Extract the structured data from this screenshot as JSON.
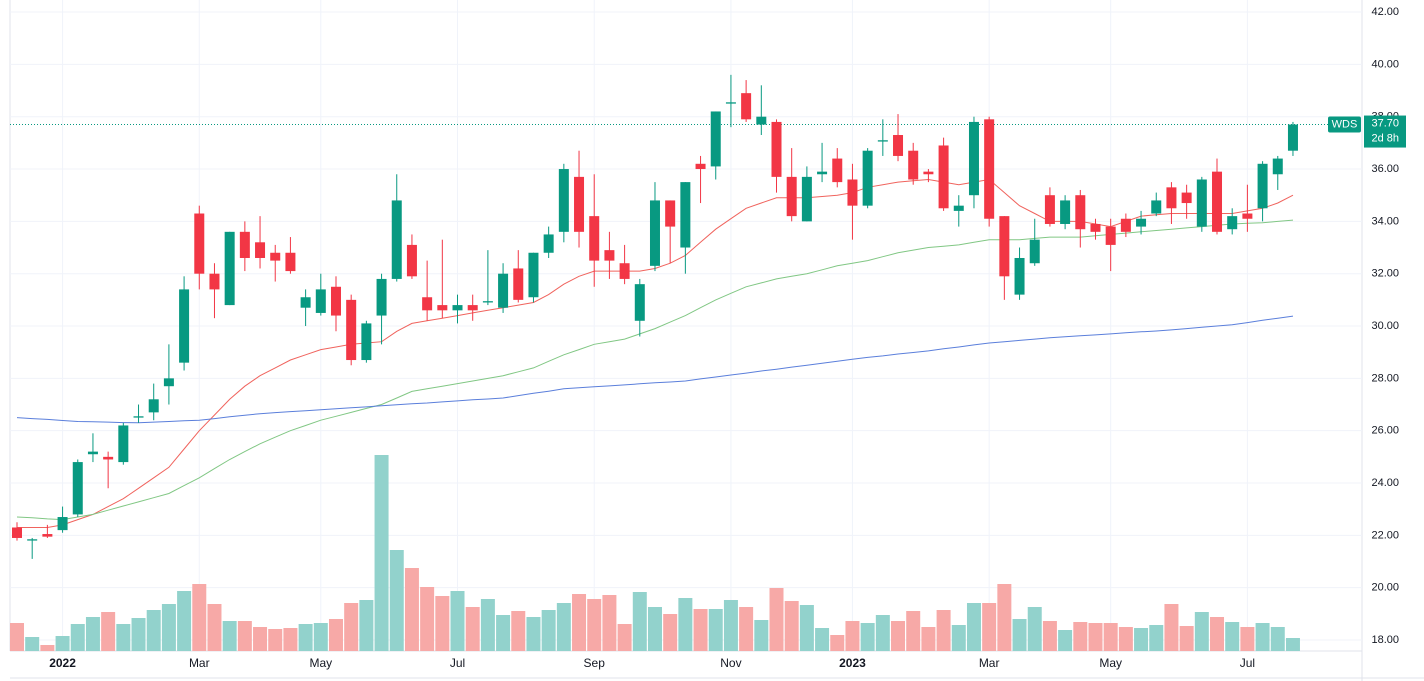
{
  "chart_data": {
    "type": "candlestick",
    "symbol": "WDS",
    "last_price": {
      "value": 37.7,
      "label": "37.70"
    },
    "countdown": "2d 8h",
    "up_color": "#089981",
    "down_color": "#f23645",
    "volume_up_color": "#92d2cc",
    "volume_down_color": "#f7a9a7",
    "grid": true,
    "categories": [
      null,
      null,
      null,
      "2022",
      null,
      null,
      null,
      null,
      null,
      null,
      null,
      null,
      "Mar",
      null,
      null,
      null,
      null,
      null,
      null,
      null,
      "May",
      null,
      null,
      null,
      null,
      null,
      null,
      null,
      null,
      "Jul",
      null,
      null,
      null,
      null,
      null,
      null,
      null,
      null,
      "Sep",
      null,
      null,
      null,
      null,
      null,
      null,
      null,
      null,
      "Nov",
      null,
      null,
      null,
      null,
      null,
      null,
      null,
      "2023",
      null,
      null,
      null,
      null,
      null,
      null,
      null,
      null,
      "Mar",
      null,
      null,
      null,
      null,
      null,
      null,
      null,
      "May",
      null,
      null,
      null,
      null,
      null,
      null,
      null,
      null,
      "Jul",
      null,
      null,
      null
    ],
    "open": [
      22.3,
      21.8,
      22.05,
      22.2,
      22.8,
      25.1,
      25.0,
      24.8,
      26.5,
      26.7,
      27.7,
      28.6,
      34.3,
      32.0,
      30.8,
      33.6,
      33.2,
      32.8,
      32.8,
      30.7,
      30.5,
      31.5,
      31.0,
      28.7,
      30.4,
      31.8,
      33.1,
      31.1,
      30.8,
      30.6,
      30.8,
      30.9,
      30.7,
      32.2,
      31.1,
      32.8,
      33.6,
      35.7,
      34.2,
      32.9,
      32.4,
      30.2,
      32.3,
      34.8,
      33.0,
      36.2,
      36.1,
      38.5,
      38.9,
      37.7,
      37.8,
      35.7,
      34.0,
      35.8,
      36.4,
      35.6,
      34.6,
      37.05,
      37.3,
      36.7,
      35.9,
      36.9,
      34.4,
      35.0,
      37.9,
      34.2,
      31.2,
      32.4,
      35.0,
      33.9,
      35.0,
      33.9,
      33.8,
      34.1,
      33.8,
      34.3,
      35.3,
      35.1,
      33.8,
      35.9,
      33.7,
      34.3,
      34.5,
      35.8,
      36.7
    ],
    "high": [
      22.5,
      21.9,
      22.4,
      23.1,
      24.9,
      25.9,
      25.2,
      26.3,
      27.0,
      27.8,
      29.3,
      31.9,
      34.6,
      32.4,
      33.6,
      34.0,
      34.2,
      33.1,
      33.4,
      31.4,
      32.0,
      31.9,
      31.2,
      30.2,
      32.0,
      35.8,
      33.5,
      32.5,
      33.3,
      31.2,
      31.2,
      32.9,
      32.4,
      32.9,
      32.8,
      33.8,
      36.2,
      36.7,
      35.8,
      33.6,
      33.1,
      31.8,
      35.5,
      34.8,
      35.5,
      36.5,
      38.2,
      39.6,
      39.4,
      39.2,
      37.9,
      36.8,
      36.1,
      37.0,
      36.8,
      36.2,
      36.8,
      37.9,
      38.1,
      37.0,
      36.0,
      37.2,
      35.0,
      38.0,
      38.0,
      34.2,
      33.0,
      34.1,
      35.3,
      35.0,
      35.2,
      34.1,
      34.1,
      34.3,
      34.4,
      35.1,
      35.5,
      35.4,
      35.7,
      36.4,
      34.5,
      35.4,
      36.3,
      36.5,
      37.8
    ],
    "low": [
      21.8,
      21.1,
      21.9,
      22.1,
      22.7,
      24.8,
      23.8,
      24.7,
      26.3,
      26.4,
      27.0,
      28.3,
      31.4,
      30.3,
      30.8,
      32.1,
      32.2,
      31.7,
      32.0,
      30.0,
      30.4,
      29.8,
      28.5,
      28.6,
      29.3,
      31.7,
      31.8,
      30.2,
      30.3,
      30.1,
      30.2,
      30.8,
      30.5,
      30.9,
      30.9,
      32.6,
      33.2,
      33.0,
      31.5,
      31.8,
      31.6,
      29.6,
      32.1,
      32.4,
      32.0,
      34.7,
      35.6,
      37.6,
      37.8,
      37.3,
      35.1,
      34.0,
      34.0,
      35.5,
      35.3,
      33.3,
      34.5,
      36.5,
      36.3,
      35.4,
      35.5,
      34.4,
      33.8,
      34.5,
      33.8,
      31.0,
      31.0,
      32.3,
      33.8,
      33.7,
      33.0,
      33.3,
      32.1,
      33.4,
      33.5,
      34.2,
      33.9,
      34.1,
      33.6,
      33.5,
      33.5,
      33.6,
      34.0,
      35.2,
      36.5
    ],
    "close": [
      21.9,
      21.85,
      21.95,
      22.7,
      24.8,
      25.2,
      24.9,
      26.2,
      26.55,
      27.2,
      28.0,
      31.4,
      32.0,
      31.4,
      33.6,
      32.6,
      32.6,
      32.5,
      32.1,
      31.1,
      31.4,
      30.4,
      28.7,
      30.1,
      31.8,
      34.8,
      31.9,
      30.6,
      30.6,
      30.8,
      30.6,
      30.95,
      32.0,
      31.0,
      32.8,
      33.5,
      36.0,
      33.6,
      32.5,
      32.5,
      31.8,
      31.6,
      34.8,
      33.8,
      35.5,
      36.0,
      38.2,
      38.55,
      37.9,
      38.0,
      35.7,
      34.2,
      35.7,
      35.9,
      35.5,
      34.6,
      36.7,
      37.1,
      36.5,
      35.6,
      35.8,
      34.5,
      34.6,
      37.8,
      34.1,
      31.9,
      32.6,
      33.3,
      33.9,
      34.8,
      33.7,
      33.6,
      33.1,
      33.6,
      34.1,
      34.8,
      34.5,
      34.7,
      35.6,
      33.6,
      34.2,
      34.1,
      36.2,
      36.4,
      37.7
    ],
    "volume": [
      28,
      14,
      6,
      15,
      27,
      34,
      39,
      27,
      33,
      41,
      47,
      60,
      67,
      47,
      30,
      30,
      24,
      22,
      23,
      27,
      28,
      32,
      48,
      51,
      196,
      101,
      83,
      64,
      55,
      60,
      44,
      52,
      36,
      40,
      34,
      41,
      48,
      57,
      52,
      56,
      27,
      59,
      44,
      37,
      53,
      42,
      42,
      51,
      44,
      31,
      63,
      50,
      46,
      23,
      16,
      30,
      28,
      36,
      30,
      40,
      24,
      41,
      26,
      48,
      48,
      67,
      32,
      44,
      30,
      21,
      29,
      28,
      28,
      24,
      23,
      26,
      47,
      25,
      39,
      34,
      29,
      24,
      28,
      24,
      13
    ],
    "ylim": [
      17.58,
      42.46
    ],
    "volume_lim": [
      0,
      651
    ],
    "yticks": [
      {
        "value": 18,
        "label": "18.00"
      },
      {
        "value": 20,
        "label": "20.00"
      },
      {
        "value": 22,
        "label": "22.00"
      },
      {
        "value": 24,
        "label": "24.00"
      },
      {
        "value": 26,
        "label": "26.00"
      },
      {
        "value": 28,
        "label": "28.00"
      },
      {
        "value": 30,
        "label": "30.00"
      },
      {
        "value": 32,
        "label": "32.00"
      },
      {
        "value": 34,
        "label": "34.00"
      },
      {
        "value": 36,
        "label": "36.00"
      },
      {
        "value": 38,
        "label": "38.00"
      },
      {
        "value": 40,
        "label": "40.00"
      },
      {
        "value": 42,
        "label": "42.00"
      }
    ],
    "ma": [
      {
        "color": "#f0635d",
        "values": [
          22.3,
          22.3,
          22.3,
          22.4,
          22.6,
          22.8,
          23.1,
          23.4,
          23.8,
          24.2,
          24.6,
          25.3,
          26.0,
          26.6,
          27.2,
          27.7,
          28.1,
          28.4,
          28.7,
          28.9,
          29.1,
          29.2,
          29.3,
          29.35,
          29.4,
          29.8,
          30.1,
          30.2,
          30.3,
          30.4,
          30.5,
          30.6,
          30.7,
          30.8,
          30.9,
          31.2,
          31.6,
          31.9,
          32.1,
          32.1,
          32.1,
          32.1,
          32.2,
          32.4,
          32.7,
          33.2,
          33.7,
          34.1,
          34.5,
          34.7,
          34.9,
          34.9,
          34.9,
          34.95,
          35.0,
          35.1,
          35.3,
          35.4,
          35.5,
          35.55,
          35.6,
          35.5,
          35.4,
          35.5,
          35.6,
          35.1,
          34.6,
          34.3,
          34.0,
          34.0,
          34.0,
          33.9,
          33.8,
          34.0,
          34.2,
          34.25,
          34.3,
          34.3,
          34.3,
          34.3,
          34.3,
          34.4,
          34.5,
          34.7,
          35.0
        ]
      },
      {
        "color": "#81c784",
        "values": [
          22.7,
          22.67,
          22.63,
          22.6,
          22.7,
          22.8,
          22.96,
          23.12,
          23.28,
          23.44,
          23.6,
          23.9,
          24.2,
          24.55,
          24.9,
          25.2,
          25.5,
          25.75,
          26.0,
          26.2,
          26.4,
          26.55,
          26.7,
          26.85,
          27.0,
          27.25,
          27.5,
          27.6,
          27.7,
          27.8,
          27.9,
          28.0,
          28.1,
          28.25,
          28.4,
          28.65,
          28.9,
          29.1,
          29.3,
          29.4,
          29.5,
          29.7,
          29.9,
          30.15,
          30.4,
          30.7,
          31.0,
          31.25,
          31.5,
          31.65,
          31.8,
          31.9,
          32.0,
          32.15,
          32.3,
          32.4,
          32.5,
          32.65,
          32.8,
          32.9,
          33.0,
          33.05,
          33.1,
          33.2,
          33.3,
          33.3,
          33.3,
          33.35,
          33.4,
          33.4,
          33.4,
          33.45,
          33.5,
          33.55,
          33.6,
          33.65,
          33.7,
          33.75,
          33.8,
          33.85,
          33.9,
          33.93,
          33.95,
          34.0,
          34.05
        ]
      },
      {
        "color": "#5b7fdb",
        "values": [
          26.5,
          26.46,
          26.43,
          26.39,
          26.35,
          26.34,
          26.33,
          26.31,
          26.3,
          26.33,
          26.35,
          26.38,
          26.4,
          26.46,
          26.53,
          26.59,
          26.65,
          26.69,
          26.73,
          26.76,
          26.8,
          26.84,
          26.88,
          26.91,
          26.95,
          26.99,
          27.03,
          27.06,
          27.1,
          27.14,
          27.18,
          27.21,
          27.25,
          27.34,
          27.43,
          27.51,
          27.6,
          27.64,
          27.68,
          27.71,
          27.75,
          27.79,
          27.83,
          27.86,
          27.9,
          27.98,
          28.05,
          28.13,
          28.2,
          28.28,
          28.35,
          28.43,
          28.5,
          28.58,
          28.65,
          28.73,
          28.8,
          28.86,
          28.93,
          28.99,
          29.05,
          29.13,
          29.2,
          29.28,
          29.35,
          29.4,
          29.45,
          29.5,
          29.55,
          29.59,
          29.63,
          29.66,
          29.7,
          29.74,
          29.78,
          29.81,
          29.85,
          29.9,
          29.95,
          30.0,
          30.05,
          30.13,
          30.22,
          30.3,
          30.38
        ]
      }
    ]
  }
}
